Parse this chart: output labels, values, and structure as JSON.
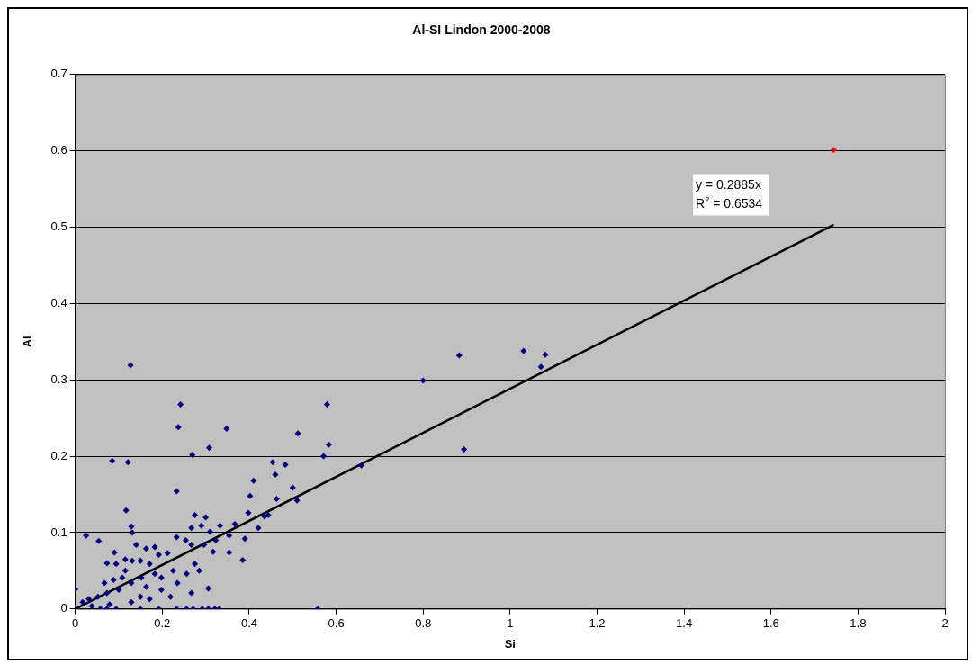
{
  "chart_data": {
    "type": "scatter",
    "title": "Al-SI Lindon 2000-2008",
    "xlabel": "Si",
    "ylabel": "Al",
    "xlim": [
      0,
      2
    ],
    "xticks": [
      0,
      0.2,
      0.4,
      0.6,
      0.8,
      1,
      1.2,
      1.4,
      1.6,
      1.8,
      2
    ],
    "ylim": [
      0,
      0.7
    ],
    "yticks": [
      0,
      0.1,
      0.2,
      0.3,
      0.4,
      0.5,
      0.6,
      0.7
    ],
    "grid": "y",
    "legend": false,
    "marker": "diamond",
    "annotations": [
      "y = 0.2885x",
      "R$^{2}$ = 0.6534"
    ],
    "series": [
      {
        "color": "#000080",
        "x": [
          0.127,
          0.242,
          0.237,
          0.348,
          0.308,
          0.269,
          0.512,
          0.085,
          0.121,
          0.454,
          0.483,
          0.46,
          0.41,
          0.5,
          0.233,
          0.402,
          0.463,
          0.51,
          0.117,
          0.398,
          0.275,
          0.3,
          0.444,
          0.435,
          0.129,
          0.29,
          0.267,
          0.131,
          0.025,
          0.31,
          0.333,
          0.367,
          0.421,
          0.054,
          0.39,
          0.233,
          0.354,
          0.385,
          0.09,
          0.14,
          0.163,
          0.183,
          0.073,
          0.115,
          0.131,
          0.306,
          0.267,
          0,
          0,
          0.058,
          0.073,
          0.094,
          0.15,
          0.192,
          0.233,
          0.256,
          0.271,
          0.292,
          0.306,
          0.321,
          0.331,
          0.254,
          0.267,
          0.212,
          0.192,
          0.171,
          0.15,
          0.225,
          0.275,
          0.285,
          0.256,
          0.198,
          0.163,
          0.129,
          0.1,
          0.073,
          0.052,
          0.031,
          0.017,
          0.108,
          0.088,
          0.067,
          0.219,
          0.171,
          0.129,
          0.079,
          0.038,
          0.296,
          0.317,
          0.354,
          0.323,
          0.235,
          0.198,
          0.15,
          0.183,
          0.115,
          0.094,
          0.152,
          0.883,
          1.031,
          1.081,
          1.071,
          0.8,
          0.579,
          0.583,
          0.571,
          0.894,
          0.658,
          0.558
        ],
        "values": [
          0.319,
          0.268,
          0.238,
          0.236,
          0.211,
          0.202,
          0.23,
          0.194,
          0.192,
          0.192,
          0.189,
          0.176,
          0.168,
          0.159,
          0.154,
          0.148,
          0.144,
          0.142,
          0.129,
          0.126,
          0.123,
          0.12,
          0.123,
          0.121,
          0.108,
          0.109,
          0.106,
          0.1,
          0.096,
          0.101,
          0.109,
          0.111,
          0.106,
          0.089,
          0.092,
          0.094,
          0.074,
          0.064,
          0.074,
          0.084,
          0.079,
          0.081,
          0.06,
          0.065,
          0.063,
          0.027,
          0.021,
          0.026,
          0,
          0,
          0,
          0,
          0,
          0,
          0,
          0,
          0,
          0,
          0,
          0,
          0,
          0.09,
          0.084,
          0.073,
          0.071,
          0.059,
          0.063,
          0.05,
          0.059,
          0.05,
          0.046,
          0.041,
          0.029,
          0.034,
          0.025,
          0.021,
          0.016,
          0.013,
          0.009,
          0.041,
          0.038,
          0.034,
          0.016,
          0.013,
          0.009,
          0.006,
          0.004,
          0.084,
          0.075,
          0.096,
          0.09,
          0.034,
          0.025,
          0.016,
          0.046,
          0.05,
          0.059,
          0.041,
          0.332,
          0.338,
          0.333,
          0.317,
          0.299,
          0.268,
          0.215,
          0.2,
          0.209,
          0.188,
          0
        ]
      },
      {
        "color": "#ff0000",
        "x": [
          1.744
        ],
        "values": [
          0.601
        ]
      },
      {
        "type": "line",
        "color": "#000000",
        "marker": "none",
        "x": [
          0,
          1.744
        ],
        "values": [
          0,
          0.503
        ]
      }
    ]
  }
}
